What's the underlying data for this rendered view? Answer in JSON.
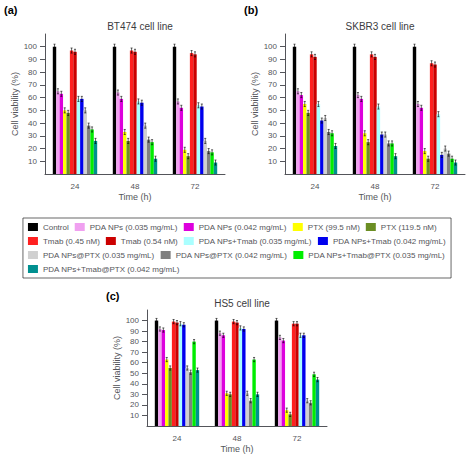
{
  "chart_data": [
    {
      "type": "bar",
      "title": "BT474 cell line",
      "xlabel": "Time (h)",
      "ylabel": "Cell viability (%)",
      "annotations": [
        "(a)"
      ],
      "legend": "center",
      "grid": false,
      "categories": [
        "24",
        "48",
        "72"
      ],
      "ylim": [
        0,
        110
      ],
      "yticks": [
        10,
        20,
        30,
        40,
        50,
        60,
        70,
        80,
        90,
        100
      ],
      "series": [
        {
          "name": "Control",
          "color": "#000000",
          "values": [
            100,
            100,
            100
          ],
          "errors": [
            2.0,
            2.0,
            2.0
          ]
        },
        {
          "name": "PDA NPs (0.035 mg/mL)",
          "color": "#f0a0f0",
          "values": [
            65,
            64,
            57
          ],
          "errors": [
            2.0,
            2.0,
            2.0
          ]
        },
        {
          "name": "PDA NPs (0.042 mg/mL)",
          "color": "#dd00dd",
          "values": [
            63,
            59,
            52
          ],
          "errors": [
            2.0,
            2.0,
            2.0
          ]
        },
        {
          "name": "PTX (99.5 nM)",
          "color": "#ffff00",
          "values": [
            50,
            33,
            19
          ],
          "errors": [
            2.0,
            2.0,
            2.0
          ]
        },
        {
          "name": "PTX (119.5 nM)",
          "color": "#6b8e23",
          "values": [
            48,
            26,
            14
          ],
          "errors": [
            2.0,
            2.0,
            2.0
          ]
        },
        {
          "name": "Tmab (0.45 nM)",
          "color": "#ff2020",
          "values": [
            97,
            97,
            95
          ],
          "errors": [
            2.0,
            2.0,
            2.0
          ]
        },
        {
          "name": "Tmab (0.54 nM)",
          "color": "#cc0000",
          "values": [
            96,
            96,
            94
          ],
          "errors": [
            2.0,
            2.0,
            2.0
          ]
        },
        {
          "name": "PDA NPs+Tmab (0.035 mg/mL)",
          "color": "#aaffff",
          "values": [
            59,
            57,
            54
          ],
          "errors": [
            2.0,
            2.0,
            2.0
          ]
        },
        {
          "name": "PDA NPs+Tmab (0.042 mg/mL)",
          "color": "#0000ee",
          "values": [
            59,
            56,
            53
          ],
          "errors": [
            2.0,
            2.0,
            2.0
          ]
        },
        {
          "name": "PDA NPs@PTX (0.035 mg/mL)",
          "color": "#d0d0d0",
          "values": [
            50,
            38,
            26
          ],
          "errors": [
            2.0,
            2.0,
            2.0
          ]
        },
        {
          "name": "PDA NPs@PTX (0.042 mg/mL)",
          "color": "#808080",
          "values": [
            38,
            27,
            18
          ],
          "errors": [
            2.0,
            2.0,
            2.0
          ]
        },
        {
          "name": "PDA NPs+Tmab@PTX (0.035 mg/mL)",
          "color": "#00ee00",
          "values": [
            35,
            25,
            17
          ],
          "errors": [
            2.0,
            2.0,
            2.0
          ]
        },
        {
          "name": "PDA NPs+Tmab@PTX (0.042 mg/mL)",
          "color": "#009090",
          "values": [
            26,
            12,
            9
          ],
          "errors": [
            2.0,
            2.0,
            2.0
          ]
        }
      ]
    },
    {
      "type": "bar",
      "title": "SKBR3 cell line",
      "xlabel": "Time (h)",
      "ylabel": "Cell viability (%)",
      "annotations": [
        "(b)"
      ],
      "legend": "center",
      "grid": false,
      "categories": [
        "24",
        "48",
        "72"
      ],
      "ylim": [
        0,
        110
      ],
      "yticks": [
        10,
        20,
        30,
        40,
        50,
        60,
        70,
        80,
        90,
        100
      ],
      "series": [
        {
          "name": "Control",
          "color": "#000000",
          "values": [
            100,
            100,
            100
          ],
          "errors": [
            2.0,
            2.0,
            2.0
          ]
        },
        {
          "name": "PDA NPs (0.035 mg/mL)",
          "color": "#f0a0f0",
          "values": [
            65,
            62,
            55
          ],
          "errors": [
            2.0,
            2.0,
            2.0
          ]
        },
        {
          "name": "PDA NPs (0.042 mg/mL)",
          "color": "#dd00dd",
          "values": [
            62,
            59,
            52
          ],
          "errors": [
            2.0,
            2.0,
            2.0
          ]
        },
        {
          "name": "PTX (99.5 nM)",
          "color": "#ffff00",
          "values": [
            55,
            32,
            18
          ],
          "errors": [
            2.0,
            2.0,
            2.0
          ]
        },
        {
          "name": "PTX (119.5 nM)",
          "color": "#6b8e23",
          "values": [
            48,
            25,
            12
          ],
          "errors": [
            2.0,
            2.0,
            2.0
          ]
        },
        {
          "name": "Tmab (0.45 nM)",
          "color": "#ff2020",
          "values": [
            94,
            94,
            87
          ],
          "errors": [
            2.0,
            2.0,
            2.0
          ]
        },
        {
          "name": "Tmab (0.54 nM)",
          "color": "#cc0000",
          "values": [
            92,
            92,
            86
          ],
          "errors": [
            2.0,
            2.0,
            2.0
          ]
        },
        {
          "name": "PDA NPs+Tmab (0.035 mg/mL)",
          "color": "#aaffff",
          "values": [
            55,
            53,
            47
          ],
          "errors": [
            2.0,
            2.0,
            2.0
          ]
        },
        {
          "name": "PDA NPs+Tmab (0.042 mg/mL)",
          "color": "#0000ee",
          "values": [
            42,
            31,
            15
          ],
          "errors": [
            2.0,
            2.0,
            2.0
          ]
        },
        {
          "name": "PDA NPs@PTX (0.035 mg/mL)",
          "color": "#d0d0d0",
          "values": [
            44,
            31,
            20
          ],
          "errors": [
            2.0,
            2.0,
            2.0
          ]
        },
        {
          "name": "PDA NPs@PTX (0.042 mg/mL)",
          "color": "#808080",
          "values": [
            33,
            24,
            16
          ],
          "errors": [
            2.0,
            2.0,
            2.0
          ]
        },
        {
          "name": "PDA NPs+Tmab@PTX (0.035 mg/mL)",
          "color": "#00ee00",
          "values": [
            32,
            24,
            12
          ],
          "errors": [
            2.0,
            2.0,
            2.0
          ]
        },
        {
          "name": "PDA NPs+Tmab@PTX (0.042 mg/mL)",
          "color": "#009090",
          "values": [
            22,
            14,
            9
          ],
          "errors": [
            2.0,
            2.0,
            2.0
          ]
        }
      ]
    },
    {
      "type": "bar",
      "title": "HS5 cell line",
      "xlabel": "Time (h)",
      "ylabel": "Cell viability (%)",
      "annotations": [
        "(c)"
      ],
      "legend": "center",
      "grid": false,
      "categories": [
        "24",
        "48",
        "72"
      ],
      "ylim": [
        0,
        110
      ],
      "yticks": [
        10,
        20,
        30,
        40,
        50,
        60,
        70,
        80,
        90,
        100
      ],
      "series": [
        {
          "name": "Control",
          "color": "#000000",
          "values": [
            100,
            100,
            100
          ],
          "errors": [
            2.0,
            2.0,
            2.0
          ]
        },
        {
          "name": "PDA NPs (0.035 mg/mL)",
          "color": "#f0a0f0",
          "values": [
            92,
            88,
            84
          ],
          "errors": [
            2.0,
            2.0,
            2.0
          ]
        },
        {
          "name": "PDA NPs (0.042 mg/mL)",
          "color": "#dd00dd",
          "values": [
            91,
            86,
            81
          ],
          "errors": [
            2.0,
            2.0,
            2.0
          ]
        },
        {
          "name": "PTX (99.5 nM)",
          "color": "#ffff00",
          "values": [
            63,
            31,
            15
          ],
          "errors": [
            2.0,
            2.0,
            2.0
          ]
        },
        {
          "name": "PTX (119.5 nM)",
          "color": "#6b8e23",
          "values": [
            55,
            30,
            11
          ],
          "errors": [
            2.0,
            2.0,
            2.0
          ]
        },
        {
          "name": "Tmab (0.45 nM)",
          "color": "#ff2020",
          "values": [
            99,
            99,
            97
          ],
          "errors": [
            2.0,
            2.0,
            2.0
          ]
        },
        {
          "name": "Tmab (0.54 nM)",
          "color": "#cc0000",
          "values": [
            98,
            98,
            97
          ],
          "errors": [
            2.0,
            2.0,
            2.0
          ]
        },
        {
          "name": "PDA NPs+Tmab (0.035 mg/mL)",
          "color": "#aaffff",
          "values": [
            97,
            93,
            86
          ],
          "errors": [
            2.0,
            2.0,
            2.0
          ]
        },
        {
          "name": "PDA NPs+Tmab (0.042 mg/mL)",
          "color": "#0000ee",
          "values": [
            96,
            92,
            86
          ],
          "errors": [
            2.0,
            2.0,
            2.0
          ]
        },
        {
          "name": "PDA NPs@PTX (0.035 mg/mL)",
          "color": "#d0d0d0",
          "values": [
            55,
            31,
            24
          ],
          "errors": [
            2.0,
            2.0,
            2.0
          ]
        },
        {
          "name": "PDA NPs@PTX (0.042 mg/mL)",
          "color": "#808080",
          "values": [
            51,
            24,
            22
          ],
          "errors": [
            2.0,
            2.0,
            2.0
          ]
        },
        {
          "name": "PDA NPs+Tmab@PTX (0.035 mg/mL)",
          "color": "#00ee00",
          "values": [
            80,
            63,
            49
          ],
          "errors": [
            2.0,
            2.0,
            2.0
          ]
        },
        {
          "name": "PDA NPs+Tmab@PTX (0.042 mg/mL)",
          "color": "#009090",
          "values": [
            53,
            30,
            44
          ],
          "errors": [
            2.0,
            2.0,
            2.0
          ]
        }
      ]
    }
  ]
}
